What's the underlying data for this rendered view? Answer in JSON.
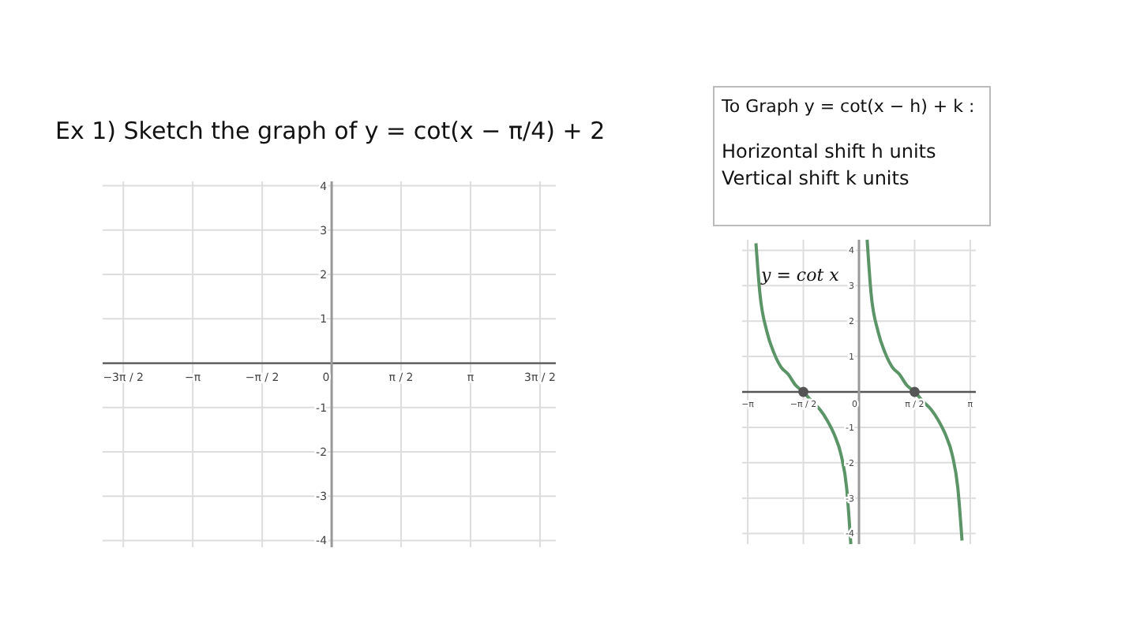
{
  "chart_data": [
    {
      "type": "line",
      "title": "Ex 1) Sketch the graph of y = cot(x − π/4) + 2",
      "xlim": [
        -5.18,
        5.07
      ],
      "ylim": [
        -4.15,
        4.1
      ],
      "grid": true,
      "xticks": [
        {
          "value": -4.7124,
          "label": "−3π / 2"
        },
        {
          "value": -3.1416,
          "label": "−π"
        },
        {
          "value": -1.5708,
          "label": "−π / 2"
        },
        {
          "value": 0,
          "label": "0"
        },
        {
          "value": 1.5708,
          "label": "π / 2"
        },
        {
          "value": 3.1416,
          "label": "π"
        },
        {
          "value": 4.7124,
          "label": "3π / 2"
        }
      ],
      "yticks": [
        -4,
        -3,
        -2,
        -1,
        {
          "value": 0,
          "label": null
        },
        1,
        2,
        3,
        4
      ]
    },
    {
      "type": "other",
      "title": "To Graph y = cot(x − h) + k :",
      "annotations": [
        "Horizontal shift h units",
        "Vertical shift k units"
      ]
    },
    {
      "type": "line",
      "xlim": [
        -3.3,
        3.3
      ],
      "ylim": [
        -4.3,
        4.3
      ],
      "grid": true,
      "marker": "none",
      "annotations": [
        "y = cot x"
      ],
      "xticks": [
        {
          "value": -3.1416,
          "label": "−π"
        },
        {
          "value": -1.5708,
          "label": "−π / 2"
        },
        {
          "value": 0,
          "label": "0"
        },
        {
          "value": 1.5708,
          "label": "π / 2"
        },
        {
          "value": 3.1416,
          "label": "π"
        }
      ],
      "yticks": [
        -4,
        -3,
        -2,
        -1,
        {
          "value": 0,
          "label": null
        },
        1,
        2,
        3,
        4
      ],
      "series": [
        {
          "color": "#5b9466",
          "x": [
            -2.91,
            -2.8,
            -2.6,
            -2.4,
            -2.2,
            -2.0,
            -1.8,
            -1.571,
            -1.3,
            -1.1,
            -0.9,
            -0.7,
            -0.5,
            -0.35,
            -0.23,
            0,
            0.23,
            0.34,
            0.54,
            0.74,
            0.94,
            1.14,
            1.34,
            1.571,
            1.84,
            2.04,
            2.24,
            2.44,
            2.64,
            2.79,
            2.91
          ],
          "values": [
            4.2,
            2.8,
            1.7,
            1.1,
            0.7,
            0.5,
            0.2,
            0,
            -0.3,
            -0.5,
            -0.8,
            -1.2,
            -1.8,
            -2.7,
            -4.3,
            null,
            4.3,
            2.8,
            1.7,
            1.1,
            0.7,
            0.5,
            0.2,
            0,
            -0.3,
            -0.5,
            -0.8,
            -1.2,
            -1.8,
            -2.7,
            -4.2
          ]
        },
        {
          "type": "scatter",
          "color": "#555555",
          "marker": "circle",
          "x": [
            -1.571,
            1.571
          ],
          "values": [
            0,
            0
          ]
        }
      ]
    }
  ]
}
